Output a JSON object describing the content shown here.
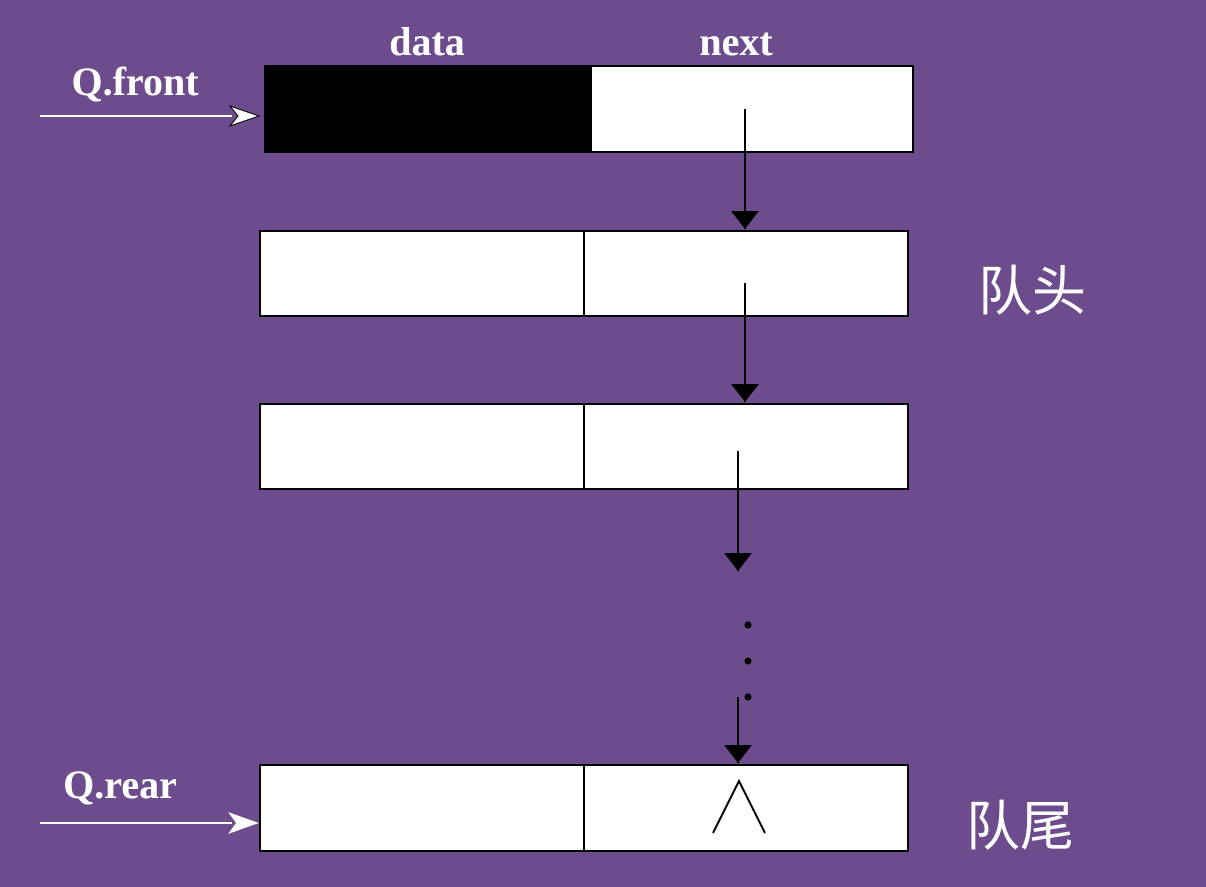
{
  "headers": {
    "data": "data",
    "next": "next"
  },
  "pointers": {
    "front": "Q.front",
    "rear": "Q.rear"
  },
  "labels": {
    "head": "队头",
    "tail": "队尾"
  },
  "null_symbol": "∧",
  "colors": {
    "background": "#6d4c8e",
    "node_fill": "#ffffff",
    "head_node_data_fill": "#000000",
    "line": "#000000",
    "text": "#ffffff"
  }
}
